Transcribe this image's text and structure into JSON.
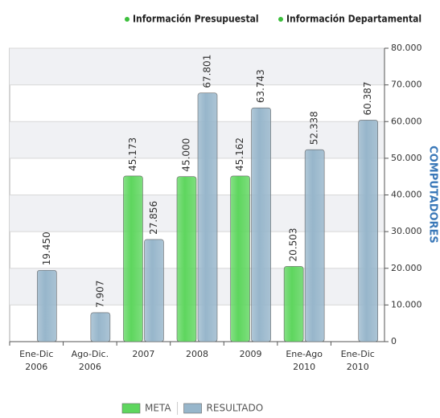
{
  "links": [
    "Información Presupuestal",
    "Información Departamental"
  ],
  "chart_data": {
    "type": "bar",
    "categories": [
      "Ene-Dic 2006",
      "Ago-Dic. 2006",
      "2007",
      "2008",
      "2009",
      "Ene-Ago 2010",
      "Ene-Dic 2010"
    ],
    "series": [
      {
        "name": "META",
        "color": "#5ed65e",
        "values": [
          null,
          null,
          45173,
          45000,
          45162,
          20503,
          null
        ],
        "value_labels": [
          null,
          null,
          "45.173",
          "45.000",
          "45.162",
          "20.503",
          null
        ]
      },
      {
        "name": "RESULTADO",
        "color": "#97b6cb",
        "values": [
          19450,
          7907,
          27856,
          67801,
          63743,
          52338,
          60387
        ],
        "value_labels": [
          "19.450",
          "7.907",
          "27.856",
          "67.801",
          "63.743",
          "52.338",
          "60.387"
        ]
      }
    ],
    "y_label": "COMPUTADORES",
    "ylim": [
      0,
      80000
    ],
    "yticks": [
      0,
      {
        "value": 10000,
        "label": "10.000"
      },
      {
        "value": 20000,
        "label": "20.000"
      },
      {
        "value": 30000,
        "label": "30.000"
      },
      {
        "value": 40000,
        "label": "40.000"
      },
      {
        "value": 50000,
        "label": "50.000"
      },
      {
        "value": 60000,
        "label": "60.000"
      },
      {
        "value": 70000,
        "label": "70.000"
      },
      {
        "value": 80000,
        "label": "80.000"
      }
    ],
    "grid": true,
    "legend": "bottom"
  }
}
